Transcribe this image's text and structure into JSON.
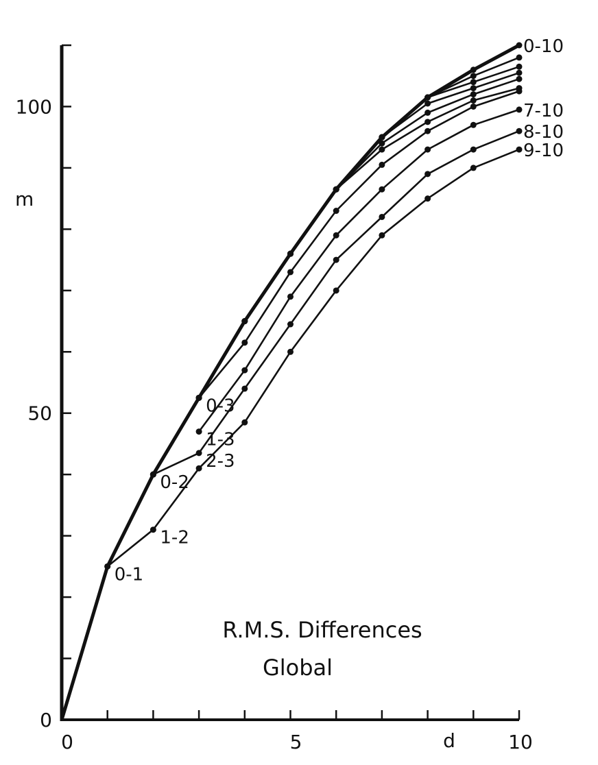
{
  "chart_data": {
    "type": "line",
    "title": "R.M.S. Differences",
    "subtitle": "Global",
    "xlabel": "d",
    "ylabel": "m",
    "xlim": [
      0,
      10
    ],
    "ylim": [
      0,
      110
    ],
    "x_tick_labels": [
      {
        "value": 0,
        "label": "0"
      },
      {
        "value": 5,
        "label": "5"
      },
      {
        "value": 10,
        "label": "10"
      }
    ],
    "y_tick_labels": [
      {
        "value": 0,
        "label": "0"
      },
      {
        "value": 50,
        "label": "50"
      },
      {
        "value": 100,
        "label": "100"
      }
    ],
    "x_minor_ticks": [
      1,
      2,
      3,
      4,
      5,
      6,
      7,
      8,
      9
    ],
    "y_minor_ticks": [
      10,
      20,
      30,
      40,
      50,
      60,
      70,
      80,
      90,
      100,
      110
    ],
    "grid": false,
    "legend": "none",
    "series": [
      {
        "name": "0-10",
        "bold": true,
        "x": [
          0,
          1,
          2,
          3,
          4,
          5,
          6,
          7,
          8,
          9,
          10
        ],
        "y": [
          0,
          25,
          40,
          52.5,
          65,
          76,
          86.5,
          95,
          101.5,
          106,
          110
        ]
      },
      {
        "name": "",
        "x": [
          2,
          3,
          4,
          5,
          6,
          7,
          8,
          9,
          10
        ],
        "y": [
          40,
          52.5,
          65,
          76,
          86.5,
          95,
          101.5,
          105,
          108
        ]
      },
      {
        "name": "",
        "x": [
          3,
          4,
          5,
          6,
          7,
          8,
          9,
          10
        ],
        "y": [
          52.5,
          65,
          76,
          86.5,
          95,
          101.5,
          104,
          106.5
        ]
      },
      {
        "name": "",
        "x": [
          4,
          5,
          6,
          7,
          8,
          9,
          10
        ],
        "y": [
          65,
          76,
          86.5,
          95,
          100.5,
          103,
          105.5
        ]
      },
      {
        "name": "",
        "x": [
          5,
          6,
          7,
          8,
          9,
          10
        ],
        "y": [
          76,
          86.5,
          94,
          99,
          102,
          104.5
        ]
      },
      {
        "name": "",
        "x": [
          6,
          7,
          8,
          9,
          10
        ],
        "y": [
          86.5,
          93,
          97.5,
          101,
          103
        ]
      },
      {
        "name": "0-3",
        "x": [
          2,
          3,
          4,
          5,
          6,
          7,
          8,
          9,
          10
        ],
        "y": [
          40,
          52.5,
          61.5,
          73,
          83,
          90.5,
          96,
          100,
          102.5
        ]
      },
      {
        "name": "7-10",
        "x": [
          3,
          4,
          5,
          6,
          7,
          8,
          9,
          10
        ],
        "y": [
          47,
          57,
          69,
          79,
          86.5,
          93,
          97,
          99.5
        ]
      },
      {
        "name": "8-10",
        "x": [
          2,
          3,
          4,
          5,
          6,
          7,
          8,
          9,
          10
        ],
        "y": [
          40,
          43.5,
          54,
          64.5,
          75,
          82,
          89,
          93,
          96
        ]
      },
      {
        "name": "9-10",
        "x": [
          1,
          2,
          3,
          4,
          5,
          6,
          7,
          8,
          9,
          10
        ],
        "y": [
          25,
          31,
          41,
          48.5,
          60,
          70,
          79,
          85,
          90,
          93
        ]
      }
    ],
    "annotations": [
      {
        "text": "0-10",
        "x": 10,
        "y": 110
      },
      {
        "text": "7-10",
        "x": 10,
        "y": 99.5
      },
      {
        "text": "8-10",
        "x": 10,
        "y": 96
      },
      {
        "text": "9-10",
        "x": 10,
        "y": 93
      },
      {
        "text": "0-3",
        "x": 3,
        "y": 52.5
      },
      {
        "text": "1-3",
        "x": 3,
        "y": 47
      },
      {
        "text": "0-2",
        "x": 2,
        "y": 40
      },
      {
        "text": "2-3",
        "x": 3,
        "y": 43.5
      },
      {
        "text": "1-2",
        "x": 2,
        "y": 31
      },
      {
        "text": "0-1",
        "x": 1,
        "y": 25
      }
    ]
  }
}
